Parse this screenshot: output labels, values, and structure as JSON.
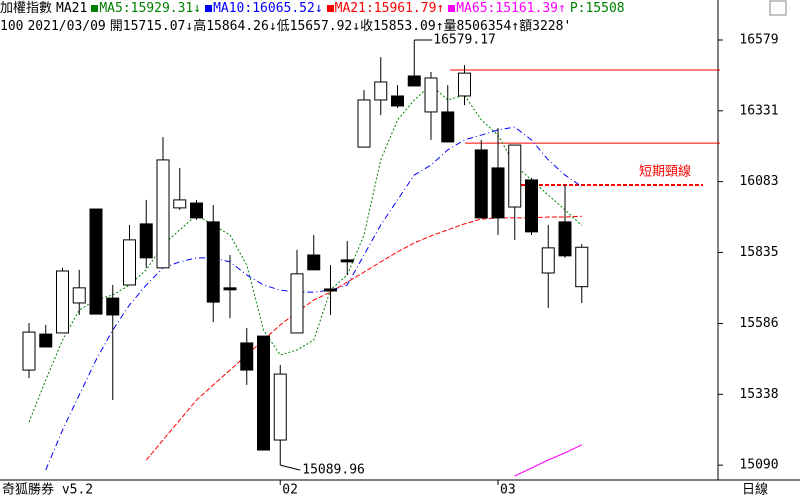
{
  "header": {
    "line1": [
      {
        "text": "加權指數",
        "color": "#000000"
      },
      {
        "text": "MA21",
        "color": "#000000",
        "swatch": "#008000"
      },
      {
        "text": "MA5:15929.31↓",
        "color": "#008000",
        "swatch": "#0000ff"
      },
      {
        "text": "MA10:16065.52↓",
        "color": "#0000ff",
        "swatch": "#ff0000"
      },
      {
        "text": "MA21:15961.79↑",
        "color": "#ff0000",
        "swatch": "#ff00ff"
      },
      {
        "text": "MA65:15161.39↑",
        "color": "#ff00ff"
      },
      {
        "text": "P:15508",
        "color": "#008000"
      }
    ],
    "line2": [
      "100",
      "2021/03/09",
      "開15715.07↓高15864.26↓低15657.92↓收15853.09↑量8506354↑額3228'"
    ]
  },
  "footer": {
    "app": "奇狐勝券 v5.2",
    "period": "日線"
  },
  "chart_data": {
    "type": "candlestick",
    "categories": [
      null,
      null,
      null,
      null,
      null,
      null,
      null,
      null,
      null,
      null,
      null,
      null,
      null,
      null,
      null,
      "02",
      null,
      null,
      null,
      null,
      null,
      null,
      null,
      null,
      null,
      null,
      null,
      null,
      "03",
      null,
      null,
      null,
      null,
      null
    ],
    "open": [
      15423,
      15549,
      15553,
      15658,
      15987,
      15675,
      15721,
      15935,
      15781,
      15991,
      16008,
      15942,
      15711,
      15518,
      15542,
      15178,
      15553,
      15826,
      15707,
      15809,
      16204,
      16369,
      16383,
      16453,
      16327,
      16327,
      16383,
      16194,
      16131,
      15994,
      16089,
      15763,
      15942,
      15715.07
    ],
    "high": [
      15588,
      15581,
      15781,
      15774,
      15987,
      15721,
      15931,
      16019,
      16239,
      16131,
      16019,
      16001,
      15826,
      15570,
      15542,
      15441,
      15844,
      15896,
      15791,
      15875,
      16404,
      16519,
      16421,
      16579.17,
      16467,
      16421,
      16491,
      16229,
      16271,
      16211,
      16096,
      15931,
      16071,
      15864.26
    ],
    "low": [
      15395,
      15504,
      15553,
      15616,
      15619,
      15318,
      15721,
      15781,
      15781,
      15984,
      15949,
      15591,
      15605,
      15371,
      15143,
      15089.96,
      15553,
      15774,
      15616,
      15756,
      16204,
      16316,
      16341,
      16418,
      16229,
      16222,
      16351,
      15956,
      15896,
      15879,
      15896,
      15640,
      15816,
      15657.92
    ],
    "close": [
      15556,
      15504,
      15770,
      15711,
      15619,
      15616,
      15879,
      15816,
      16159,
      16019,
      15956,
      15661,
      15704,
      15423,
      15143,
      15409,
      15760,
      15774,
      15700,
      15802,
      16369,
      16432,
      16348,
      16418,
      16446,
      16222,
      16463,
      15956,
      15956,
      16211,
      15907,
      15851,
      15823,
      15853.09
    ],
    "ma_lines": [
      {
        "color": "#008000",
        "dash": "2,2",
        "values": [
          15241,
          15388,
          15528,
          15633,
          15669,
          15686,
          15721,
          15774,
          15861,
          15914,
          15966,
          15931,
          15896,
          15791,
          15563,
          15476,
          15493,
          15528,
          15704,
          15756,
          15896,
          16159,
          16299,
          16369,
          16421,
          16369,
          16386,
          16299,
          16246,
          16141,
          16089,
          16036,
          15984,
          15929.31
        ]
      },
      {
        "color": "#0000ff",
        "dash": "6,3,1,3",
        "values": [
          null,
          15073,
          15213,
          15336,
          15458,
          15563,
          15651,
          15721,
          15781,
          15802,
          15816,
          15816,
          15802,
          15756,
          15721,
          15703,
          15696,
          15696,
          15703,
          15721,
          15826,
          15931,
          16019,
          16106,
          16141,
          16194,
          16229,
          16246,
          16264,
          16274,
          16229,
          16159,
          16106,
          16065.52
        ]
      },
      {
        "color": "#ff0000",
        "dash": "5,2",
        "values": [
          null,
          null,
          null,
          null,
          null,
          null,
          null,
          15108,
          15178,
          15248,
          15318,
          15371,
          15423,
          15476,
          15528,
          15581,
          15626,
          15668,
          15696,
          15731,
          15766,
          15802,
          15837,
          15868,
          15893,
          15914,
          15935,
          15952,
          15956,
          15956,
          15956,
          15959,
          15959,
          15961.79
        ]
      },
      {
        "color": "#ff00ff",
        "dash": "",
        "values": [
          null,
          null,
          null,
          null,
          null,
          null,
          null,
          null,
          null,
          null,
          null,
          null,
          null,
          null,
          null,
          null,
          null,
          null,
          null,
          null,
          null,
          null,
          null,
          null,
          null,
          null,
          null,
          null,
          null,
          15052,
          15080,
          15108,
          15133,
          15161.39
        ]
      }
    ],
    "hlines": [
      {
        "value": 16474,
        "color": "#ff0000",
        "dashed": false
      },
      {
        "value": 16218,
        "color": "#ff0000",
        "dashed": false
      },
      {
        "value": 16071,
        "color": "#ff0000",
        "dashed": true,
        "label": "短期頸線"
      }
    ],
    "ylim": [
      15045,
      16600
    ],
    "yticks": [
      16579,
      16331,
      16083,
      15835,
      15586,
      15338,
      15090
    ]
  }
}
